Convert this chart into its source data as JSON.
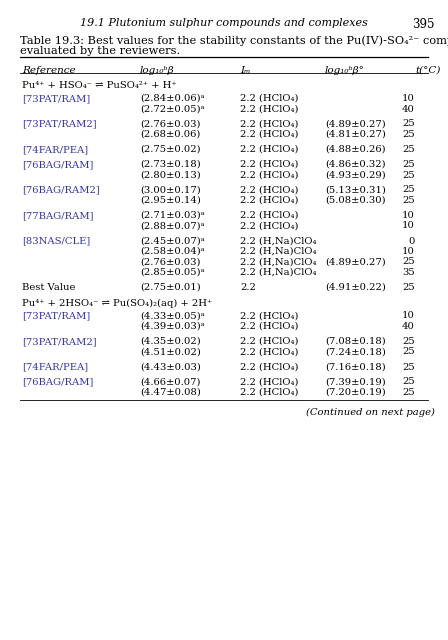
{
  "page_header": "19.1 Plutonium sulphur compounds and complexes",
  "page_number": "395",
  "col_headers": [
    "Reference",
    "log₁₀ᵇβ",
    "Iₘ",
    "log₁₀ᵇβ°",
    "t(°C)"
  ],
  "reaction1": "Pu⁴⁺ + HSO₄⁻ ⇌ PuSO₄²⁺ + H⁺",
  "reaction2": "Pu⁴⁺ + 2HSO₄⁻ ⇌ Pu(SO₄)₂(aq) + 2H⁺",
  "rows_section1": [
    {
      "ref": "[73PAT/RAM]",
      "beta": "(2.84±0.06)ᵃ",
      "Im": "2.2 (HClO₄)",
      "beta0": "",
      "t": "10"
    },
    {
      "ref": "",
      "beta": "(2.72±0.05)ᵃ",
      "Im": "2.2 (HClO₄)",
      "beta0": "",
      "t": "40"
    },
    {
      "ref": "[73PAT/RAM2]",
      "beta": "(2.76±0.03)",
      "Im": "2.2 (HClO₄)",
      "beta0": "(4.89±0.27)",
      "t": "25"
    },
    {
      "ref": "",
      "beta": "(2.68±0.06)",
      "Im": "2.2 (HClO₄)",
      "beta0": "(4.81±0.27)",
      "t": "25"
    },
    {
      "ref": "[74FAR/PEA]",
      "beta": "(2.75±0.02)",
      "Im": "2.2 (HClO₄)",
      "beta0": "(4.88±0.26)",
      "t": "25"
    },
    {
      "ref": "[76BAG/RAM]",
      "beta": "(2.73±0.18)",
      "Im": "2.2 (HClO₄)",
      "beta0": "(4.86±0.32)",
      "t": "25"
    },
    {
      "ref": "",
      "beta": "(2.80±0.13)",
      "Im": "2.2 (HClO₄)",
      "beta0": "(4.93±0.29)",
      "t": "25"
    },
    {
      "ref": "[76BAG/RAM2]",
      "beta": "(3.00±0.17)",
      "Im": "2.2 (HClO₄)",
      "beta0": "(5.13±0.31)",
      "t": "25"
    },
    {
      "ref": "",
      "beta": "(2.95±0.14)",
      "Im": "2.2 (HClO₄)",
      "beta0": "(5.08±0.30)",
      "t": "25"
    },
    {
      "ref": "[77BAG/RAM]",
      "beta": "(2.71±0.03)ᵃ",
      "Im": "2.2 (HClO₄)",
      "beta0": "",
      "t": "10"
    },
    {
      "ref": "",
      "beta": "(2.88±0.07)ᵃ",
      "Im": "2.2 (HClO₄)",
      "beta0": "",
      "t": "10"
    },
    {
      "ref": "[83NAS/CLE]",
      "beta": "(2.45±0.07)ᵃ",
      "Im": "2.2 (H,Na)ClO₄",
      "beta0": "",
      "t": "0"
    },
    {
      "ref": "",
      "beta": "(2.58±0.04)ᵃ",
      "Im": "2.2 (H,Na)ClO₄",
      "beta0": "",
      "t": "10"
    },
    {
      "ref": "",
      "beta": "(2.76±0.03)",
      "Im": "2.2 (H,Na)ClO₄",
      "beta0": "(4.89±0.27)",
      "t": "25"
    },
    {
      "ref": "",
      "beta": "(2.85±0.05)ᵃ",
      "Im": "2.2 (H,Na)ClO₄",
      "beta0": "",
      "t": "35"
    },
    {
      "ref": "Best Value",
      "beta": "(2.75±0.01)",
      "Im": "2.2",
      "beta0": "(4.91±0.22)",
      "t": "25"
    }
  ],
  "rows_section2": [
    {
      "ref": "[73PAT/RAM]",
      "beta": "(4.33±0.05)ᵃ",
      "Im": "2.2 (HClO₄)",
      "beta0": "",
      "t": "10"
    },
    {
      "ref": "",
      "beta": "(4.39±0.03)ᵃ",
      "Im": "2.2 (HClO₄)",
      "beta0": "",
      "t": "40"
    },
    {
      "ref": "[73PAT/RAM2]",
      "beta": "(4.35±0.02)",
      "Im": "2.2 (HClO₄)",
      "beta0": "(7.08±0.18)",
      "t": "25"
    },
    {
      "ref": "",
      "beta": "(4.51±0.02)",
      "Im": "2.2 (HClO₄)",
      "beta0": "(7.24±0.18)",
      "t": "25"
    },
    {
      "ref": "[74FAR/PEA]",
      "beta": "(4.43±0.03)",
      "Im": "2.2 (HClO₄)",
      "beta0": "(7.16±0.18)",
      "t": "25"
    },
    {
      "ref": "[76BAG/RAM]",
      "beta": "(4.66±0.07)",
      "Im": "2.2 (HClO₄)",
      "beta0": "(7.39±0.19)",
      "t": "25"
    },
    {
      "ref": "",
      "beta": "(4.47±0.08)",
      "Im": "2.2 (HClO₄)",
      "beta0": "(7.20±0.19)",
      "t": "25"
    }
  ],
  "continued_note": "(Continued on next page)",
  "ref_color": "#3333aa",
  "text_color": "#000000",
  "bg_color": "#ffffff",
  "font_size": 7.2,
  "caption_font_size": 8.2,
  "header_font_size": 7.5
}
